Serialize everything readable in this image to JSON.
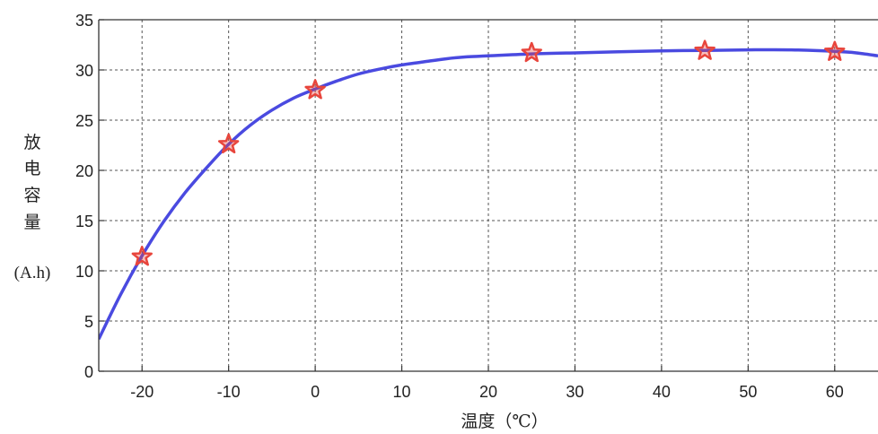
{
  "chart_data": {
    "type": "line",
    "title": "",
    "xlabel": "温度（℃）",
    "ylabel_chars": [
      "放",
      "电",
      "容",
      "量"
    ],
    "ylabel_unit": "(A.h)",
    "xlim": [
      -25,
      65
    ],
    "ylim": [
      0,
      35
    ],
    "xticks": [
      -20,
      -10,
      0,
      10,
      20,
      30,
      40,
      50,
      60
    ],
    "yticks": [
      0,
      5,
      10,
      15,
      20,
      25,
      30,
      35
    ],
    "grid": true,
    "series": [
      {
        "marker": "star",
        "color": "#e8453c",
        "x": [
          -20,
          -10,
          0,
          25,
          45,
          60
        ],
        "y": [
          11.4,
          22.6,
          28.0,
          31.7,
          31.9,
          31.8
        ]
      },
      {
        "marker": "none",
        "color": "#4a4ae0",
        "x": [
          -25,
          -22.5,
          -20,
          -17.5,
          -15,
          -12.5,
          -10,
          -7.5,
          -5,
          -2.5,
          0,
          2.5,
          5,
          7.5,
          10,
          12.5,
          15,
          17.5,
          20,
          25,
          30,
          35,
          40,
          45,
          50,
          55,
          60,
          62.5,
          65
        ],
        "y": [
          3.2,
          7.6,
          11.5,
          14.9,
          17.8,
          20.3,
          22.6,
          24.5,
          26.0,
          27.2,
          28.1,
          28.9,
          29.6,
          30.1,
          30.5,
          30.8,
          31.1,
          31.3,
          31.4,
          31.6,
          31.7,
          31.8,
          31.9,
          31.95,
          32.0,
          32.0,
          31.85,
          31.7,
          31.4
        ]
      }
    ]
  }
}
